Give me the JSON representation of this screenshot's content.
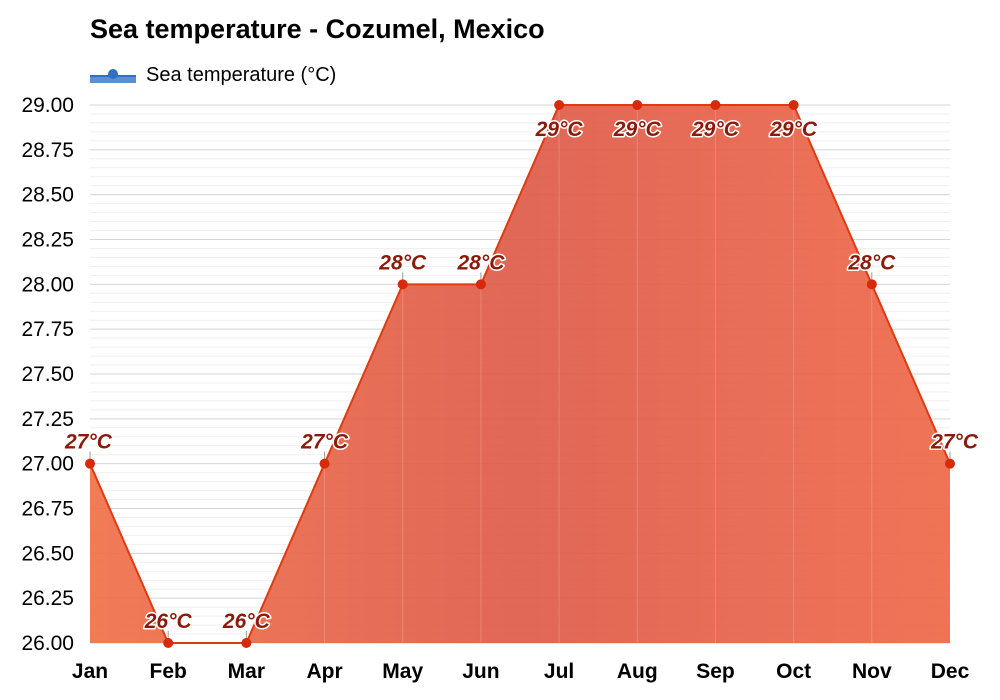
{
  "chart_data": {
    "type": "area",
    "title": "Sea temperature - Cozumel, Mexico",
    "categories": [
      "Jan",
      "Feb",
      "Mar",
      "Apr",
      "May",
      "Jun",
      "Jul",
      "Aug",
      "Sep",
      "Oct",
      "Nov",
      "Dec"
    ],
    "series": [
      {
        "name": "Sea temperature (°C)",
        "values": [
          27,
          26,
          26,
          27,
          28,
          28,
          29,
          29,
          29,
          29,
          28,
          27
        ],
        "labels": [
          "27°C",
          "26°C",
          "26°C",
          "27°C",
          "28°C",
          "28°C",
          "29°C",
          "29°C",
          "29°C",
          "29°C",
          "28°C",
          "27°C"
        ]
      }
    ],
    "ylim": [
      26.0,
      29.0
    ],
    "yticks": [
      "26.00",
      "26.25",
      "26.50",
      "26.75",
      "27.00",
      "27.25",
      "27.50",
      "27.75",
      "28.00",
      "28.25",
      "28.50",
      "28.75",
      "29.00"
    ],
    "grid": true,
    "legend": "top-left",
    "colors": {
      "line": "#e03a12",
      "point": "#d62a0a",
      "label": "#8b1a0a",
      "legend_swatch": "#5b8fd6"
    }
  }
}
